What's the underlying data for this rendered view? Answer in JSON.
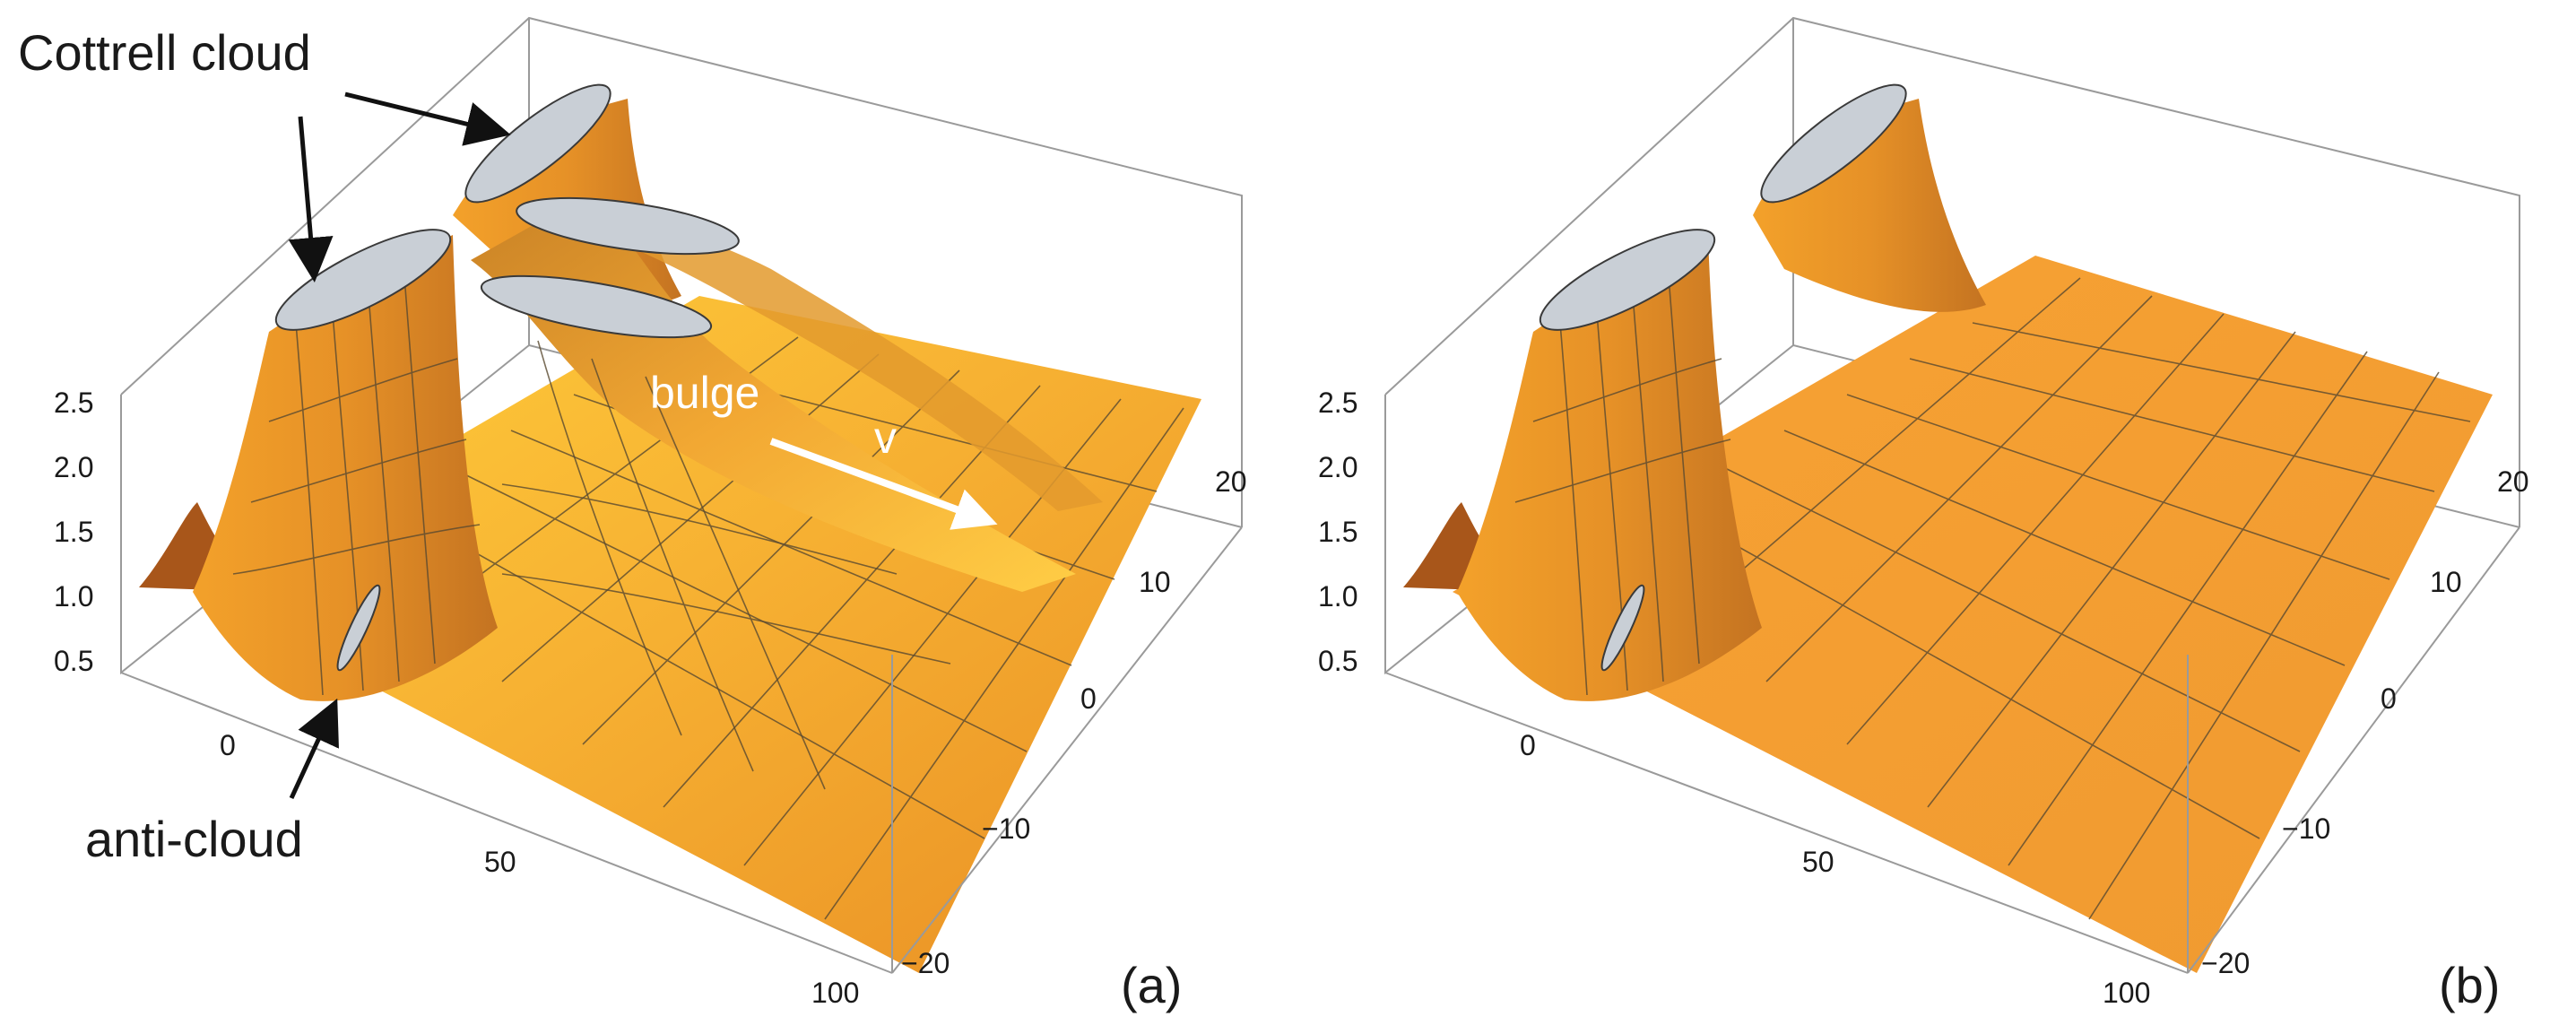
{
  "panels": [
    {
      "id": "a",
      "label": "(a)",
      "z_ticks": [
        "2.5",
        "2.0",
        "1.5",
        "1.0",
        "0.5"
      ],
      "x_ticks": [
        "0",
        "50",
        "100"
      ],
      "y_ticks": [
        "20",
        "10",
        "0",
        "−10",
        "−20"
      ],
      "annotations": {
        "cottrell": "Cottrell cloud",
        "anticloud": "anti-cloud",
        "bulge": "bulge",
        "velocity": "v"
      }
    },
    {
      "id": "b",
      "label": "(b)",
      "z_ticks": [
        "2.5",
        "2.0",
        "1.5",
        "1.0",
        "0.5"
      ],
      "x_ticks": [
        "0",
        "50",
        "100"
      ],
      "y_ticks": [
        "20",
        "10",
        "0",
        "−10",
        "−20"
      ]
    }
  ],
  "colors": {
    "surface_light": "#ffd23a",
    "surface_mid": "#f5a623",
    "surface_dark": "#b9681a",
    "cut": "#c9cfd6",
    "box": "#9a9a9a"
  }
}
